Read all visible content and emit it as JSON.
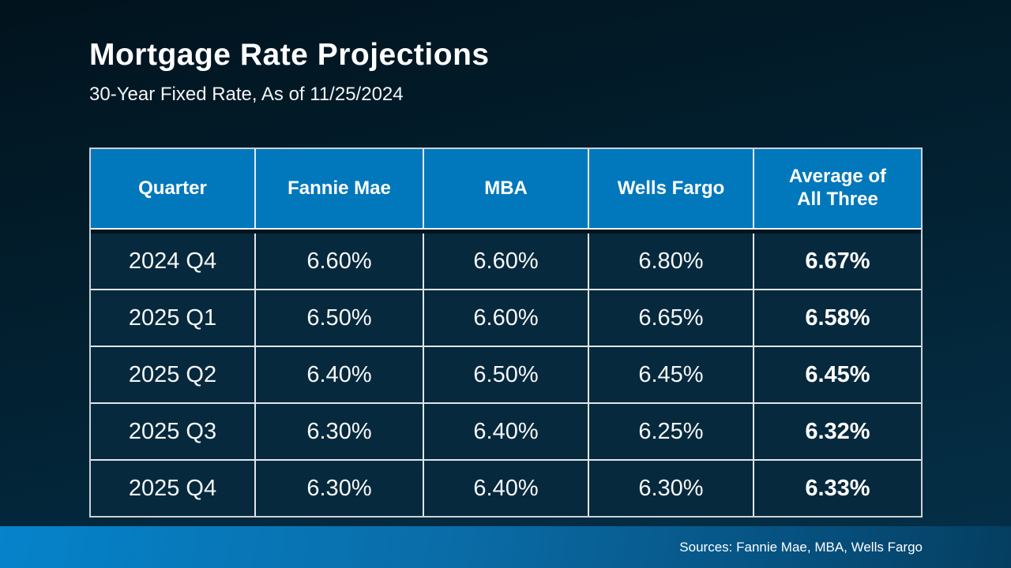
{
  "slide": {
    "title": "Mortgage Rate Projections",
    "subtitle": "30-Year Fixed Rate, As of 11/25/2024"
  },
  "chart_data": {
    "type": "table",
    "title": "Mortgage Rate Projections",
    "subtitle": "30-Year Fixed Rate, As of 11/25/2024",
    "columns": [
      "Quarter",
      "Fannie Mae",
      "MBA",
      "Wells Fargo",
      "Average of All Three"
    ],
    "rows": [
      [
        "2024 Q4",
        "6.60%",
        "6.60%",
        "6.80%",
        "6.67%"
      ],
      [
        "2025 Q1",
        "6.50%",
        "6.60%",
        "6.65%",
        "6.58%"
      ],
      [
        "2025 Q2",
        "6.40%",
        "6.50%",
        "6.45%",
        "6.45%"
      ],
      [
        "2025 Q3",
        "6.30%",
        "6.40%",
        "6.25%",
        "6.32%"
      ],
      [
        "2025 Q4",
        "6.30%",
        "6.40%",
        "6.30%",
        "6.33%"
      ]
    ]
  },
  "footer": {
    "sources": "Sources: Fannie Mae, MBA, Wells Fargo"
  },
  "colors": {
    "background_top": "#01131d",
    "background_bottom": "#053049",
    "header_blue": "#0278bc",
    "cell_background": "#07293d",
    "table_border": "#c9d2d8",
    "footer_gradient_left": "#0583cb",
    "footer_gradient_right": "#053e60",
    "text": "#ffffff"
  }
}
